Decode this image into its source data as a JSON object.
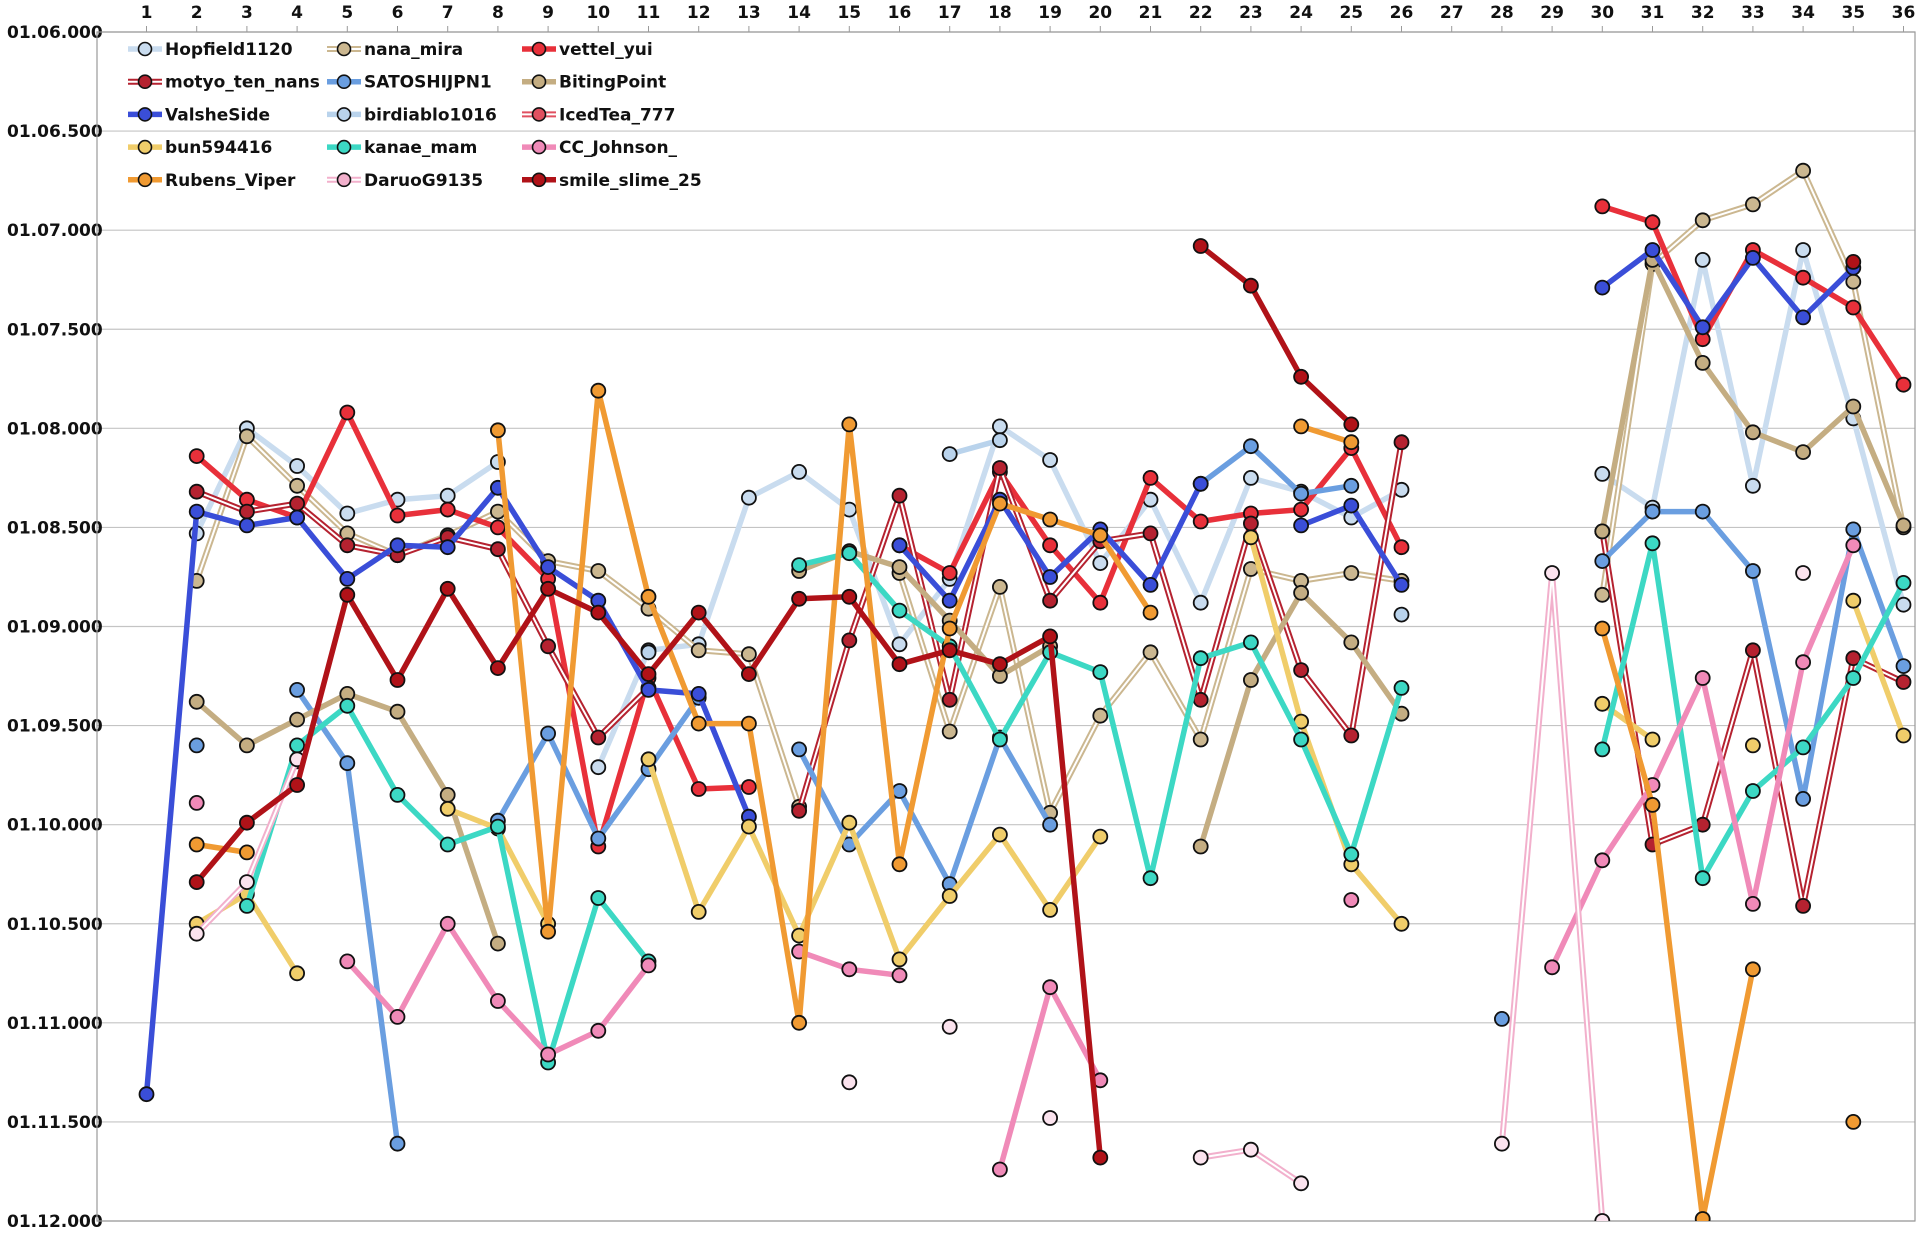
{
  "chart_data": {
    "type": "line",
    "title": "",
    "xlabel": "",
    "ylabel": "",
    "x": [
      1,
      2,
      3,
      4,
      5,
      6,
      7,
      8,
      9,
      10,
      11,
      12,
      13,
      14,
      15,
      16,
      17,
      18,
      19,
      20,
      21,
      22,
      23,
      24,
      25,
      26,
      27,
      28,
      29,
      30,
      31,
      32,
      33,
      34,
      35,
      36
    ],
    "x_tick_labels": [
      "1",
      "2",
      "3",
      "4",
      "5",
      "6",
      "7",
      "8",
      "9",
      "10",
      "11",
      "12",
      "13",
      "14",
      "15",
      "16",
      "17",
      "18",
      "19",
      "20",
      "21",
      "22",
      "23",
      "24",
      "25",
      "26",
      "27",
      "28",
      "29",
      "30",
      "31",
      "32",
      "33",
      "34",
      "35",
      "36"
    ],
    "x_axis_position": "top",
    "y_reversed": true,
    "y_unit": "seconds",
    "ylim": [
      66.0,
      72.0
    ],
    "y_ticks": [
      66.0,
      66.5,
      67.0,
      67.5,
      68.0,
      68.5,
      69.0,
      69.5,
      70.0,
      70.5,
      71.0,
      71.5,
      72.0
    ],
    "y_tick_labels": [
      "01.06.000",
      "01.06.500",
      "01.07.000",
      "01.07.500",
      "01.08.000",
      "01.08.500",
      "01.09.000",
      "01.09.500",
      "01.10.000",
      "01.10.500",
      "01.11.000",
      "01.11.500",
      "01.12.000"
    ],
    "grid": true,
    "legend_position": "top-left",
    "series": [
      {
        "name": "Hopfield1120",
        "color": "#c9dcef",
        "style": "solid",
        "values": [
          null,
          68.53,
          68.0,
          68.19,
          68.43,
          68.36,
          68.34,
          68.17,
          null,
          69.71,
          69.12,
          69.09,
          68.35,
          68.22,
          68.41,
          69.09,
          68.76,
          67.99,
          68.16,
          68.68,
          68.36,
          68.88,
          68.25,
          68.32,
          68.45,
          68.31,
          null,
          null,
          null,
          68.23,
          68.4,
          67.15,
          68.29,
          67.1,
          67.95,
          68.89
        ]
      },
      {
        "name": "nana_mira",
        "color": "#cbb790",
        "style": "double",
        "values": [
          null,
          68.77,
          68.04,
          68.29,
          68.53,
          68.64,
          68.54,
          68.42,
          68.67,
          68.72,
          68.91,
          69.12,
          69.14,
          69.91,
          null,
          68.73,
          69.53,
          68.8,
          69.94,
          69.45,
          69.13,
          69.57,
          68.71,
          68.77,
          68.73,
          68.77,
          null,
          null,
          null,
          68.84,
          67.17,
          66.95,
          66.87,
          66.7,
          67.26,
          68.5
        ]
      },
      {
        "name": "vettel_yui",
        "color": "#e8303a",
        "style": "solid",
        "values": [
          null,
          68.14,
          68.36,
          68.45,
          67.92,
          68.44,
          68.41,
          68.5,
          68.76,
          70.11,
          69.26,
          69.82,
          69.81,
          null,
          null,
          68.59,
          68.73,
          68.22,
          68.59,
          68.88,
          68.25,
          68.47,
          68.43,
          68.41,
          68.1,
          68.6,
          null,
          null,
          null,
          66.88,
          66.96,
          67.55,
          67.1,
          67.24,
          67.39,
          67.78
        ]
      },
      {
        "name": "motyo_ten_nans",
        "color": "#b52230",
        "style": "double",
        "values": [
          null,
          68.32,
          68.42,
          68.38,
          68.59,
          68.64,
          68.55,
          68.61,
          69.1,
          69.56,
          69.31,
          null,
          null,
          69.93,
          69.07,
          68.34,
          69.37,
          68.2,
          68.87,
          68.57,
          68.53,
          69.37,
          68.48,
          69.22,
          69.55,
          68.07,
          null,
          null,
          null,
          68.52,
          70.1,
          70.0,
          69.12,
          70.41,
          69.16,
          69.28
        ]
      },
      {
        "name": "SATOSHIJPN1",
        "color": "#6a9ee0",
        "style": "solid",
        "values": [
          null,
          69.6,
          null,
          69.32,
          69.69,
          71.61,
          null,
          69.98,
          69.54,
          70.07,
          69.72,
          69.36,
          null,
          69.62,
          70.1,
          69.83,
          70.3,
          69.56,
          70.0,
          null,
          null,
          68.28,
          68.09,
          68.33,
          68.29,
          null,
          null,
          70.98,
          null,
          68.67,
          68.42,
          68.42,
          68.72,
          69.87,
          68.51,
          69.2
        ]
      },
      {
        "name": "BitingPoint",
        "color": "#c4ad82",
        "style": "solid",
        "values": [
          null,
          69.38,
          69.6,
          69.47,
          69.34,
          69.43,
          69.85,
          70.6,
          null,
          null,
          null,
          null,
          null,
          68.72,
          68.62,
          68.7,
          68.97,
          69.25,
          69.1,
          null,
          null,
          70.11,
          69.27,
          68.83,
          69.08,
          69.44,
          null,
          null,
          null,
          68.52,
          67.15,
          67.67,
          68.02,
          68.12,
          67.89,
          68.49
        ]
      },
      {
        "name": "ValsheSide",
        "color": "#3a4ed8",
        "style": "solid",
        "values": [
          71.36,
          68.42,
          68.49,
          68.45,
          68.76,
          68.59,
          68.6,
          68.3,
          68.7,
          68.87,
          69.32,
          69.34,
          69.96,
          null,
          null,
          68.59,
          68.87,
          68.36,
          68.75,
          68.51,
          68.79,
          68.28,
          null,
          68.49,
          68.39,
          68.79,
          null,
          null,
          null,
          67.29,
          67.1,
          67.49,
          67.14,
          67.44,
          67.19,
          null
        ]
      },
      {
        "name": "birdiablo1016",
        "color": "#b9d3ec",
        "style": "solid",
        "values": [
          null,
          null,
          null,
          null,
          null,
          null,
          null,
          null,
          null,
          null,
          69.13,
          null,
          null,
          null,
          null,
          null,
          68.13,
          68.06,
          null,
          null,
          null,
          null,
          null,
          null,
          null,
          68.94,
          null,
          null,
          null,
          null,
          null,
          null,
          null,
          null,
          null,
          null
        ]
      },
      {
        "name": "IcedTea_777",
        "color": "#e05060",
        "style": "double",
        "values": [
          null,
          null,
          null,
          69.68,
          null,
          null,
          null,
          null,
          null,
          null,
          null,
          null,
          null,
          null,
          null,
          null,
          null,
          null,
          null,
          null,
          null,
          null,
          null,
          null,
          null,
          null,
          null,
          null,
          null,
          null,
          null,
          null,
          null,
          null,
          null,
          null
        ]
      },
      {
        "name": "bun594416",
        "color": "#f0cd6a",
        "style": "solid",
        "values": [
          null,
          70.5,
          70.35,
          70.75,
          null,
          null,
          69.92,
          70.02,
          70.5,
          null,
          69.67,
          70.44,
          70.01,
          70.56,
          69.99,
          70.68,
          70.36,
          70.05,
          70.43,
          70.06,
          null,
          null,
          68.55,
          69.48,
          70.2,
          70.5,
          null,
          null,
          null,
          69.39,
          69.57,
          null,
          69.6,
          null,
          68.87,
          69.55
        ]
      },
      {
        "name": "kanae_mam",
        "color": "#3cd8c4",
        "style": "solid",
        "values": [
          null,
          null,
          70.41,
          69.6,
          69.4,
          69.85,
          70.1,
          70.01,
          71.2,
          70.37,
          70.69,
          null,
          null,
          68.69,
          68.63,
          68.92,
          69.1,
          69.57,
          69.13,
          69.23,
          70.27,
          69.16,
          69.08,
          69.57,
          70.15,
          69.31,
          null,
          null,
          null,
          69.62,
          68.58,
          70.27,
          69.83,
          69.61,
          69.26,
          68.78
        ]
      },
      {
        "name": "CC_Johnson_",
        "color": "#f08ab8",
        "style": "solid",
        "values": [
          null,
          69.89,
          null,
          null,
          70.69,
          70.97,
          70.5,
          70.89,
          71.16,
          71.04,
          70.71,
          null,
          null,
          70.64,
          70.73,
          70.76,
          null,
          71.74,
          70.82,
          71.29,
          null,
          null,
          null,
          null,
          70.38,
          null,
          null,
          null,
          70.72,
          70.18,
          69.8,
          69.26,
          70.4,
          69.18,
          68.59,
          null
        ]
      },
      {
        "name": "Rubens_Viper",
        "color": "#f09a32",
        "style": "solid",
        "values": [
          null,
          70.1,
          70.14,
          null,
          null,
          null,
          null,
          68.01,
          70.54,
          67.81,
          68.85,
          69.49,
          69.49,
          71.0,
          67.98,
          70.2,
          69.01,
          68.38,
          68.46,
          68.54,
          68.93,
          null,
          null,
          67.99,
          68.07,
          null,
          null,
          null,
          null,
          69.01,
          69.9,
          71.99,
          70.73,
          null,
          71.5,
          null
        ]
      },
      {
        "name": "DaruoG9135",
        "color": "#f2b0cc",
        "style": "double",
        "values": [
          null,
          70.55,
          70.29,
          69.67,
          null,
          null,
          null,
          null,
          null,
          null,
          null,
          null,
          null,
          null,
          71.3,
          null,
          71.02,
          null,
          71.48,
          null,
          null,
          71.68,
          71.64,
          71.81,
          null,
          null,
          null,
          71.61,
          68.73,
          72.0,
          null,
          null,
          null,
          68.73,
          null,
          null
        ]
      },
      {
        "name": "smile_slime_25",
        "color": "#b01218",
        "style": "solid",
        "values": [
          null,
          70.29,
          69.99,
          69.8,
          68.84,
          69.27,
          68.81,
          69.21,
          68.81,
          68.93,
          69.24,
          68.93,
          69.24,
          68.86,
          68.85,
          69.19,
          69.12,
          69.19,
          69.05,
          71.68,
          null,
          67.08,
          67.28,
          67.74,
          67.98,
          null,
          null,
          null,
          null,
          null,
          null,
          null,
          null,
          null,
          67.16,
          null
        ]
      }
    ]
  }
}
